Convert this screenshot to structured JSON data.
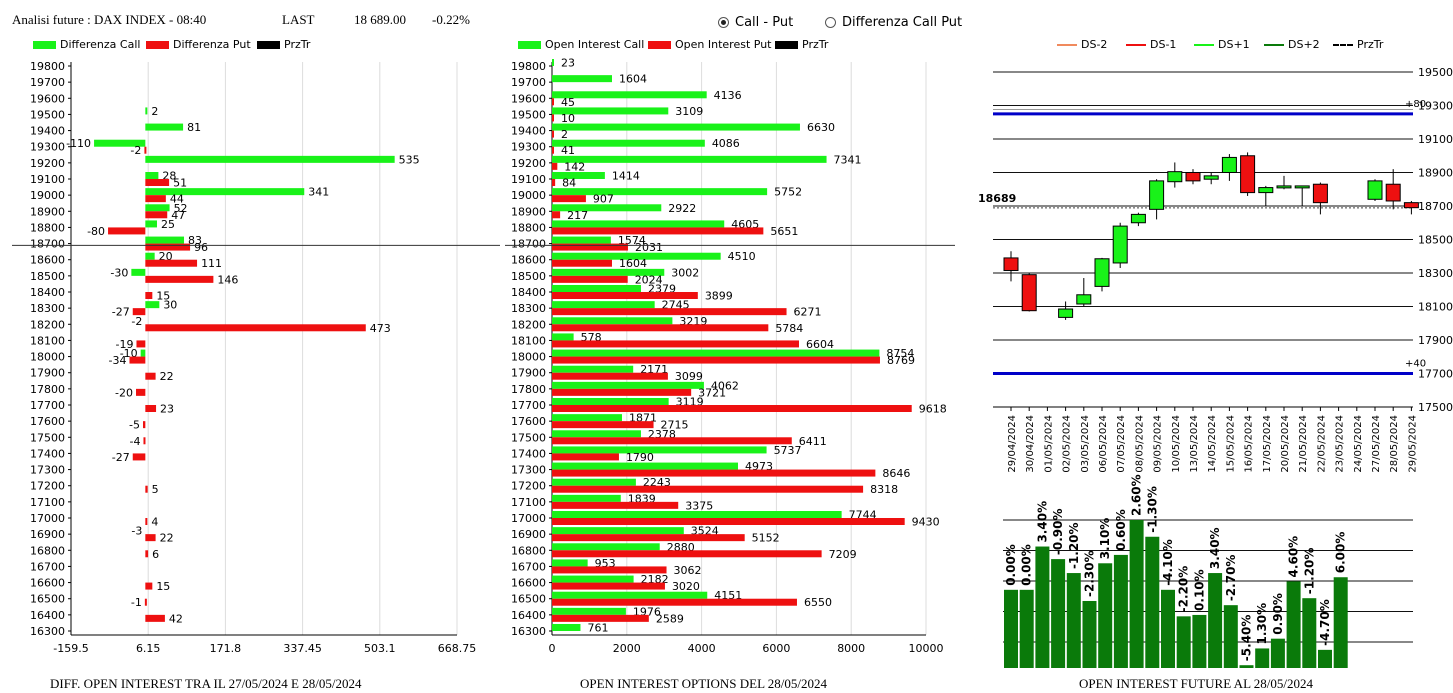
{
  "header": {
    "title": "Analisi future : DAX INDEX - 08:40",
    "last_label": "LAST",
    "last_value": "18 689.00",
    "change": "-0.22%"
  },
  "mode": {
    "options": [
      "Call - Put",
      "Differenza Call Put"
    ],
    "selected": "Call - Put"
  },
  "colors": {
    "green": "#19f219",
    "red": "#ee1010",
    "black": "#000000",
    "blue": "#0000c8",
    "dark_green": "#0a7a0a",
    "orange": "#f08a5d"
  },
  "footers": {
    "left": "DIFF. OPEN INTEREST TRA IL 27/05/2024 E 28/05/2024",
    "middle": "OPEN INTEREST OPTIONS DEL 28/05/2024",
    "right": "OPEN INTEREST FUTURE AL 28/05/2024"
  },
  "chart_data": [
    {
      "id": "diff",
      "type": "bar",
      "orientation": "horizontal",
      "legend": [
        "Differenza Call",
        "Differenza Put",
        "PrzTr"
      ],
      "strikes": [
        19800,
        19700,
        19600,
        19500,
        19400,
        19300,
        19200,
        19100,
        19000,
        18900,
        18800,
        18700,
        18600,
        18500,
        18400,
        18300,
        18200,
        18100,
        18000,
        17900,
        17800,
        17700,
        17600,
        17500,
        17400,
        17300,
        17200,
        17100,
        17000,
        16900,
        16800,
        16700,
        16600,
        16500,
        16400,
        16300
      ],
      "series": [
        {
          "name": "Differenza Call",
          "values": [
            null,
            null,
            null,
            2,
            81,
            -110,
            535,
            28,
            341,
            52,
            25,
            83,
            20,
            -30,
            null,
            30,
            null,
            null,
            -10,
            null,
            null,
            null,
            null,
            null,
            null,
            null,
            null,
            null,
            null,
            null,
            null,
            null,
            null,
            null,
            null,
            null
          ]
        },
        {
          "name": "Differenza Put",
          "values": [
            null,
            null,
            null,
            null,
            null,
            -2,
            null,
            51,
            44,
            47,
            -80,
            96,
            111,
            146,
            15,
            -27,
            473,
            -19,
            -34,
            22,
            -20,
            23,
            -5,
            -4,
            -27,
            null,
            5,
            null,
            4,
            22,
            6,
            null,
            15,
            -1,
            42,
            null
          ]
        }
      ],
      "extra_labels": [
        {
          "strike": 16900,
          "text": "-3"
        },
        {
          "strike": 18200,
          "text": "-2"
        }
      ],
      "xticks": [
        "-159.5",
        "6.15",
        "171.8",
        "337.45",
        "503.1",
        "668.75"
      ],
      "xlim": [
        -159.5,
        668.75
      ],
      "przTr": 18689
    },
    {
      "id": "oi",
      "type": "bar",
      "orientation": "horizontal",
      "legend": [
        "Open Interest Call",
        "Open Interest Put",
        "PrzTr"
      ],
      "strikes": [
        19800,
        19700,
        19600,
        19500,
        19400,
        19300,
        19200,
        19100,
        19000,
        18900,
        18800,
        18700,
        18600,
        18500,
        18400,
        18300,
        18200,
        18100,
        18000,
        17900,
        17800,
        17700,
        17600,
        17500,
        17400,
        17300,
        17200,
        17100,
        17000,
        16900,
        16800,
        16700,
        16600,
        16500,
        16400,
        16300
      ],
      "series": [
        {
          "name": "Open Interest Call",
          "values": [
            23,
            1604,
            4136,
            3109,
            6630,
            4086,
            7341,
            1414,
            5752,
            2922,
            4605,
            1574,
            4510,
            3002,
            2379,
            2745,
            3219,
            578,
            8754,
            2171,
            4062,
            3119,
            1871,
            2378,
            5737,
            4973,
            2243,
            1839,
            7744,
            3524,
            2880,
            953,
            2182,
            4151,
            1976,
            761
          ]
        },
        {
          "name": "Open Interest Put",
          "values": [
            null,
            null,
            45,
            10,
            2,
            41,
            142,
            84,
            907,
            217,
            5651,
            2031,
            1604,
            2024,
            3899,
            6271,
            5784,
            6604,
            8769,
            3099,
            3721,
            9618,
            2715,
            6411,
            1790,
            8646,
            8318,
            3375,
            9430,
            5152,
            7209,
            3062,
            3020,
            6550,
            2589,
            null
          ]
        }
      ],
      "xticks": [
        0,
        2000,
        4000,
        6000,
        8000,
        10000
      ],
      "xlim": [
        0,
        10000
      ],
      "przTr": 18689
    },
    {
      "id": "candles",
      "type": "candlestick",
      "legend": [
        "DS-2",
        "DS-1",
        "DS+1",
        "DS+2",
        "PrzTr"
      ],
      "yticks": [
        19500,
        19300,
        19100,
        18900,
        18700,
        18500,
        18300,
        18100,
        17900,
        17700,
        17500
      ],
      "ylim": [
        17500,
        19500
      ],
      "last_label": "18689",
      "lines": [
        {
          "label": "+80",
          "value": 19250
        },
        {
          "label": "+40",
          "value": 17700
        }
      ],
      "gray_line": 19300,
      "przTr": 18689,
      "dates": [
        "29/04/2024",
        "30/04/2024",
        "01/05/2024",
        "02/05/2024",
        "03/05/2024",
        "06/05/2024",
        "07/05/2024",
        "08/05/2024",
        "09/05/2024",
        "10/05/2024",
        "13/05/2024",
        "14/05/2024",
        "15/05/2024",
        "16/05/2024",
        "17/05/2024",
        "20/05/2024",
        "21/05/2024",
        "22/05/2024",
        "23/05/2024",
        "24/05/2024",
        "27/05/2024",
        "28/05/2024",
        "29/05/2024"
      ],
      "ohlc": [
        {
          "o": 18390,
          "h": 18430,
          "l": 18250,
          "c": 18315
        },
        {
          "o": 18290,
          "h": 18300,
          "l": 18070,
          "c": 18075
        },
        null,
        {
          "o": 18035,
          "h": 18130,
          "l": 18020,
          "c": 18085
        },
        {
          "o": 18115,
          "h": 18270,
          "l": 18100,
          "c": 18170
        },
        {
          "o": 18220,
          "h": 18390,
          "l": 18190,
          "c": 18385
        },
        {
          "o": 18360,
          "h": 18600,
          "l": 18330,
          "c": 18580
        },
        {
          "o": 18600,
          "h": 18660,
          "l": 18580,
          "c": 18650
        },
        {
          "o": 18680,
          "h": 18860,
          "l": 18620,
          "c": 18850
        },
        {
          "o": 18845,
          "h": 18960,
          "l": 18810,
          "c": 18905
        },
        {
          "o": 18900,
          "h": 18920,
          "l": 18830,
          "c": 18850
        },
        {
          "o": 18860,
          "h": 18900,
          "l": 18830,
          "c": 18880
        },
        {
          "o": 18900,
          "h": 19010,
          "l": 18850,
          "c": 18990
        },
        {
          "o": 19000,
          "h": 19020,
          "l": 18760,
          "c": 18780
        },
        {
          "o": 18780,
          "h": 18820,
          "l": 18700,
          "c": 18810
        },
        {
          "o": 18810,
          "h": 18880,
          "l": 18800,
          "c": 18820
        },
        {
          "o": 18820,
          "h": 18820,
          "l": 18700,
          "c": 18820
        },
        {
          "o": 18830,
          "h": 18840,
          "l": 18650,
          "c": 18720
        },
        null,
        null,
        {
          "o": 18740,
          "h": 18860,
          "l": 18730,
          "c": 18850
        },
        {
          "o": 18830,
          "h": 18920,
          "l": 18680,
          "c": 18730
        },
        {
          "o": 18720,
          "h": 18730,
          "l": 18650,
          "c": 18690
        }
      ]
    },
    {
      "id": "oi_future",
      "type": "bar",
      "orientation": "vertical",
      "series": [
        {
          "name": "",
          "heights": [
            0.56,
            0.56,
            0.87,
            0.78,
            0.68,
            0.48,
            0.75,
            0.81,
            1.06,
            0.94,
            0.56,
            0.37,
            0.38,
            0.68,
            0.45,
            0.02,
            0.14,
            0.21,
            0.62,
            0.5,
            0.13,
            0.65
          ],
          "labels": [
            "0.00%",
            "0.00%",
            "3.40%",
            "-0.90%",
            "-1.20%",
            "-2.30%",
            "3.10%",
            "0.60%",
            "2.60%",
            "-1.30%",
            "-4.10%",
            "-2.20%",
            "0.10%",
            "3.40%",
            "-2.70%",
            "-5.40%",
            "1.30%",
            "0.90%",
            "4.60%",
            "-1.20%",
            "-4.70%",
            "6.00%"
          ]
        }
      ]
    }
  ]
}
